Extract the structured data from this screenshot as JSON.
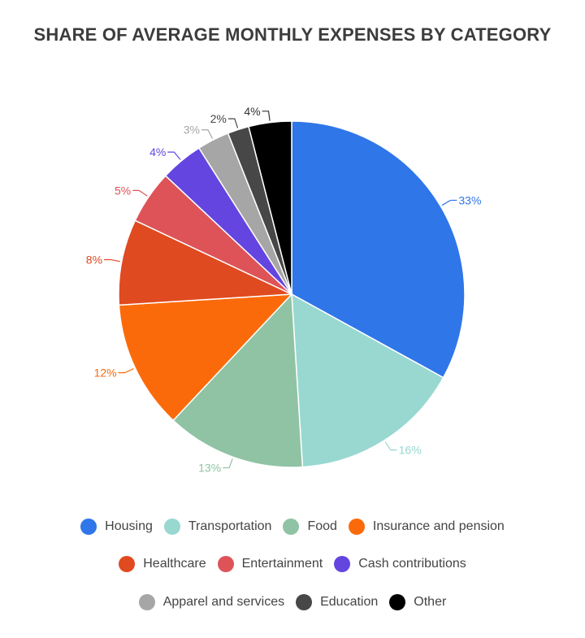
{
  "chart_data": {
    "type": "pie",
    "title": "SHARE OF AVERAGE MONTHLY EXPENSES BY CATEGORY",
    "start_angle": "top, clockwise",
    "legend_position": "bottom",
    "slices": [
      {
        "label": "Housing",
        "value": 33,
        "display": "33%",
        "color": "#2f76e8"
      },
      {
        "label": "Transportation",
        "value": 16,
        "display": "16%",
        "color": "#98d8d1"
      },
      {
        "label": "Food",
        "value": 13,
        "display": "13%",
        "color": "#8fc3a3"
      },
      {
        "label": "Insurance and pension",
        "value": 12,
        "display": "12%",
        "color": "#fb6a0a"
      },
      {
        "label": "Healthcare",
        "value": 8,
        "display": "8%",
        "color": "#e04a20"
      },
      {
        "label": "Entertainment",
        "value": 5,
        "display": "5%",
        "color": "#de5358"
      },
      {
        "label": "Cash contributions",
        "value": 4,
        "display": "4%",
        "color": "#6445e0"
      },
      {
        "label": "Apparel and services",
        "value": 3,
        "display": "3%",
        "color": "#a6a6a6"
      },
      {
        "label": "Education",
        "value": 2,
        "display": "2%",
        "color": "#474747"
      },
      {
        "label": "Other",
        "value": 4,
        "display": "4%",
        "color": "#000000"
      }
    ]
  }
}
